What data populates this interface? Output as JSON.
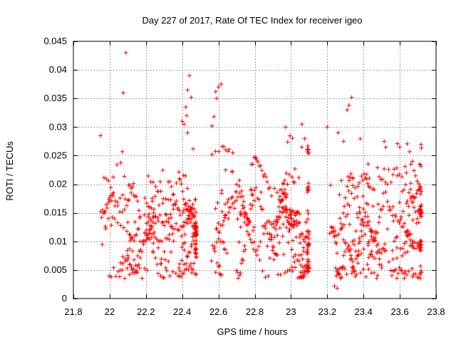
{
  "chart_data": {
    "type": "scatter",
    "title": "Day 227 of 2017, Rate Of TEC Index for receiver igeo",
    "xlabel": "GPS time / hours",
    "ylabel": "ROTI / TECUs",
    "xlim": [
      21.8,
      23.8
    ],
    "ylim": [
      0,
      0.045
    ],
    "xticks": [
      21.8,
      22,
      22.2,
      22.4,
      22.6,
      22.8,
      23,
      23.2,
      23.4,
      23.6,
      23.8
    ],
    "xtick_labels": [
      "21.8",
      "22",
      "22.2",
      "22.4",
      "22.6",
      "22.8",
      "23",
      "23.2",
      "23.4",
      "23.6",
      "23.8"
    ],
    "yticks": [
      0,
      0.005,
      0.01,
      0.015,
      0.02,
      0.025,
      0.03,
      0.035,
      0.04,
      0.045
    ],
    "ytick_labels": [
      "0",
      "0.005",
      "0.01",
      "0.015",
      "0.02",
      "0.025",
      "0.03",
      "0.035",
      "0.04",
      "0.045"
    ],
    "grid": true,
    "marker": "+",
    "marker_color": "#ff0000",
    "segments": [
      {
        "x_start": 21.945,
        "x_end": 22.48
      },
      {
        "x_start": 22.56,
        "x_end": 23.1
      },
      {
        "x_start": 23.18,
        "x_end": 23.72
      }
    ],
    "series": [
      {
        "name": "ROTI",
        "highlights": [
          {
            "x": 22.09,
            "y": 0.043
          },
          {
            "x": 22.075,
            "y": 0.036
          },
          {
            "x": 21.95,
            "y": 0.0285
          },
          {
            "x": 22.07,
            "y": 0.0257
          },
          {
            "x": 22.44,
            "y": 0.039
          },
          {
            "x": 22.45,
            "y": 0.0352
          },
          {
            "x": 22.43,
            "y": 0.0365
          },
          {
            "x": 22.42,
            "y": 0.0335
          },
          {
            "x": 22.425,
            "y": 0.032
          },
          {
            "x": 22.4,
            "y": 0.031
          },
          {
            "x": 22.41,
            "y": 0.0305
          },
          {
            "x": 22.43,
            "y": 0.029
          },
          {
            "x": 22.46,
            "y": 0.0262
          },
          {
            "x": 22.585,
            "y": 0.0362
          },
          {
            "x": 22.6,
            "y": 0.037
          },
          {
            "x": 22.615,
            "y": 0.0375
          },
          {
            "x": 22.59,
            "y": 0.035
          },
          {
            "x": 22.575,
            "y": 0.0318
          },
          {
            "x": 22.565,
            "y": 0.0302
          },
          {
            "x": 23.335,
            "y": 0.0352
          },
          {
            "x": 23.32,
            "y": 0.0338
          },
          {
            "x": 23.31,
            "y": 0.033
          },
          {
            "x": 23.2,
            "y": 0.03
          },
          {
            "x": 23.06,
            "y": 0.0305
          },
          {
            "x": 22.97,
            "y": 0.03
          },
          {
            "x": 23.26,
            "y": 0.029
          },
          {
            "x": 23.29,
            "y": 0.0275
          },
          {
            "x": 23.6,
            "y": 0.0265
          },
          {
            "x": 23.24,
            "y": 0.0022
          },
          {
            "x": 23.255,
            "y": 0.0018
          }
        ]
      }
    ]
  }
}
